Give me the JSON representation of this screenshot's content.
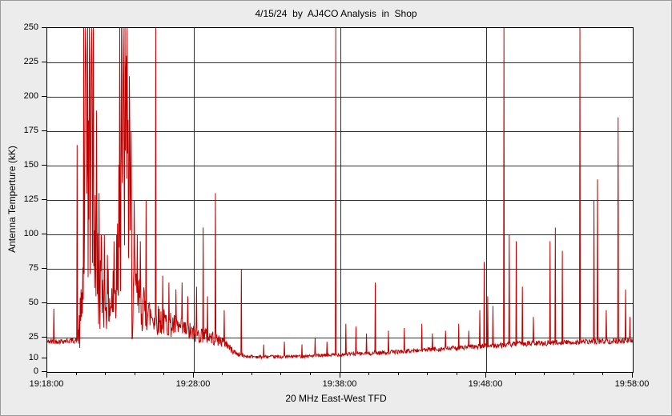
{
  "window": {
    "background": "#ececec",
    "border_color": "#9a9a9a"
  },
  "chart_data": {
    "type": "line",
    "title": "4/15/24  by  AJ4CO Analysis  in  Shop",
    "xlabel": "20 MHz East-West TFD",
    "ylabel": "Antenna Temperture (kK)",
    "legend": [],
    "grid": true,
    "plot_bg": "#ffffff",
    "grid_color": "#303030",
    "line_color": "#c00000",
    "ylim": [
      0,
      250
    ],
    "xlim_minutes": [
      0,
      40
    ],
    "y_tick_values": [
      0,
      10,
      25,
      50,
      75,
      100,
      125,
      150,
      175,
      200,
      225,
      250
    ],
    "y_grid_values": [
      25,
      50,
      75,
      100,
      125,
      150,
      175,
      200,
      225
    ],
    "x_ticks": [
      {
        "minutes": 0,
        "label": "19:18:00"
      },
      {
        "minutes": 10,
        "label": "19:28:00"
      },
      {
        "minutes": 20,
        "label": "19:38:00"
      },
      {
        "minutes": 30,
        "label": "19:48:00"
      },
      {
        "minutes": 40,
        "label": "19:58:00"
      }
    ],
    "x_minor_tick_step_minutes": 2,
    "sample_step_minutes": 0.03,
    "noise_seed": 42,
    "baseline_kk": [
      [
        0,
        22
      ],
      [
        1,
        22.5
      ],
      [
        2,
        23
      ],
      [
        2.3,
        35
      ],
      [
        2.45,
        70
      ],
      [
        2.6,
        140
      ],
      [
        3,
        150
      ],
      [
        3.25,
        110
      ],
      [
        3.45,
        70
      ],
      [
        3.8,
        60
      ],
      [
        4.3,
        50
      ],
      [
        4.7,
        55
      ],
      [
        4.9,
        120
      ],
      [
        5.1,
        160
      ],
      [
        5.4,
        155
      ],
      [
        5.65,
        110
      ],
      [
        5.8,
        65
      ],
      [
        6.2,
        50
      ],
      [
        6.7,
        45
      ],
      [
        7.2,
        40
      ],
      [
        8,
        36
      ],
      [
        9,
        32
      ],
      [
        10,
        28
      ],
      [
        11,
        26
      ],
      [
        11.8,
        23
      ],
      [
        12.2,
        21
      ],
      [
        12.6,
        16
      ],
      [
        13,
        13
      ],
      [
        13.5,
        11.5
      ],
      [
        14.5,
        11
      ],
      [
        16,
        11
      ],
      [
        17.5,
        11.5
      ],
      [
        19,
        12
      ],
      [
        20.5,
        13
      ],
      [
        22,
        13.5
      ],
      [
        23.5,
        14.5
      ],
      [
        25,
        15.5
      ],
      [
        26.5,
        16.5
      ],
      [
        28,
        17.5
      ],
      [
        29.5,
        18.5
      ],
      [
        31,
        19.5
      ],
      [
        32.5,
        20.5
      ],
      [
        34,
        21
      ],
      [
        35.5,
        21.5
      ],
      [
        37,
        22
      ],
      [
        38.5,
        22.5
      ],
      [
        40,
        23
      ]
    ],
    "noise_amp_kk": [
      [
        0,
        1.8
      ],
      [
        2,
        2
      ],
      [
        2.3,
        25
      ],
      [
        2.6,
        95
      ],
      [
        3,
        95
      ],
      [
        3.3,
        70
      ],
      [
        3.6,
        35
      ],
      [
        4.2,
        22
      ],
      [
        4.7,
        30
      ],
      [
        4.9,
        90
      ],
      [
        5.4,
        95
      ],
      [
        5.7,
        60
      ],
      [
        6,
        25
      ],
      [
        6.5,
        18
      ],
      [
        7,
        13
      ],
      [
        8,
        10
      ],
      [
        9,
        8
      ],
      [
        10,
        7
      ],
      [
        11,
        6
      ],
      [
        12,
        4
      ],
      [
        12.6,
        2.5
      ],
      [
        13,
        1.6
      ],
      [
        14,
        1.2
      ],
      [
        18,
        1.2
      ],
      [
        22,
        1.4
      ],
      [
        26,
        1.6
      ],
      [
        30,
        1.8
      ],
      [
        34,
        2
      ],
      [
        40,
        2.2
      ]
    ],
    "spikes_kk": [
      [
        0.45,
        46
      ],
      [
        2.05,
        165
      ],
      [
        2.5,
        250
      ],
      [
        2.62,
        250
      ],
      [
        2.75,
        250
      ],
      [
        2.88,
        250
      ],
      [
        3.02,
        250
      ],
      [
        3.15,
        250
      ],
      [
        3.35,
        190
      ],
      [
        3.55,
        130
      ],
      [
        3.7,
        100
      ],
      [
        3.9,
        100
      ],
      [
        4.1,
        85
      ],
      [
        4.55,
        95
      ],
      [
        4.75,
        100
      ],
      [
        4.95,
        250
      ],
      [
        5.08,
        250
      ],
      [
        5.2,
        250
      ],
      [
        5.32,
        250
      ],
      [
        5.45,
        250
      ],
      [
        5.6,
        215
      ],
      [
        5.72,
        175
      ],
      [
        5.95,
        125
      ],
      [
        6.15,
        100
      ],
      [
        6.35,
        95
      ],
      [
        6.75,
        125
      ],
      [
        7.4,
        250
      ],
      [
        7.9,
        70
      ],
      [
        8.3,
        65
      ],
      [
        8.8,
        60
      ],
      [
        9.2,
        65
      ],
      [
        9.6,
        55
      ],
      [
        10.2,
        62
      ],
      [
        10.65,
        105
      ],
      [
        10.95,
        55
      ],
      [
        11.5,
        130
      ],
      [
        12.1,
        45
      ],
      [
        13.25,
        75
      ],
      [
        14.8,
        20
      ],
      [
        16.2,
        22
      ],
      [
        17.4,
        20
      ],
      [
        18.3,
        25
      ],
      [
        19.1,
        22
      ],
      [
        19.7,
        250
      ],
      [
        20.4,
        35
      ],
      [
        21.1,
        33
      ],
      [
        21.8,
        28
      ],
      [
        22.4,
        65
      ],
      [
        23.3,
        30
      ],
      [
        24.4,
        32
      ],
      [
        25.6,
        35
      ],
      [
        26.3,
        28
      ],
      [
        27.2,
        30
      ],
      [
        28.1,
        35
      ],
      [
        28.8,
        30
      ],
      [
        29.55,
        45
      ],
      [
        29.85,
        80
      ],
      [
        30.1,
        55
      ],
      [
        30.45,
        48
      ],
      [
        31.2,
        250
      ],
      [
        31.55,
        100
      ],
      [
        32.05,
        95
      ],
      [
        32.45,
        62
      ],
      [
        33.2,
        40
      ],
      [
        34.35,
        95
      ],
      [
        34.7,
        105
      ],
      [
        35.2,
        88
      ],
      [
        36.4,
        250
      ],
      [
        37.35,
        125
      ],
      [
        37.6,
        140
      ],
      [
        38.2,
        45
      ],
      [
        39,
        185
      ],
      [
        39.5,
        60
      ],
      [
        39.8,
        40
      ]
    ]
  }
}
